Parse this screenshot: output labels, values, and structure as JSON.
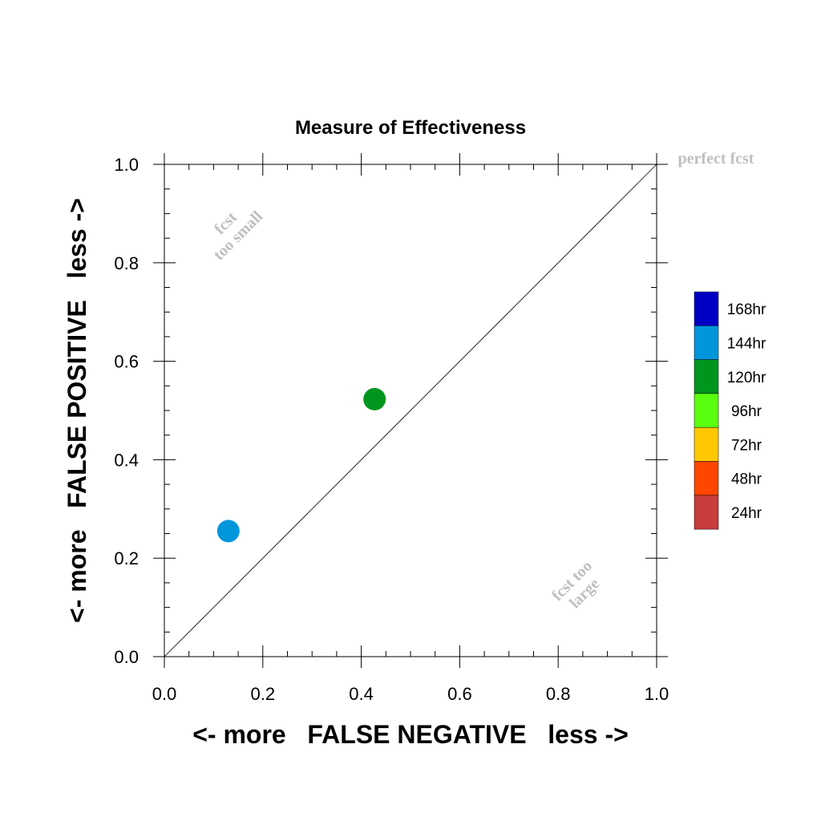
{
  "chart_data": {
    "type": "scatter",
    "title": "Measure of Effectiveness",
    "xlabel": "<- more   FALSE NEGATIVE   less ->",
    "ylabel": "<- more   FALSE POSITIVE   less ->",
    "xlim": [
      0.0,
      1.0
    ],
    "ylim": [
      0.0,
      1.0
    ],
    "xticks": [
      "0.0",
      "0.2",
      "0.4",
      "0.6",
      "0.8",
      "1.0"
    ],
    "yticks": [
      "0.0",
      "0.2",
      "0.4",
      "0.6",
      "0.8",
      "1.0"
    ],
    "grid": false,
    "reference_line": {
      "from": [
        0,
        0
      ],
      "to": [
        1,
        1
      ]
    },
    "annotations": {
      "perfect": "perfect fcst",
      "too_small_1": "fcst",
      "too_small_2": "too small",
      "too_large_1": "fcst too",
      "too_large_2": "large"
    },
    "legend": {
      "position": "right",
      "entries": [
        {
          "label": "168hr",
          "color": "#0000c4"
        },
        {
          "label": "144hr",
          "color": "#0096dc"
        },
        {
          "label": "120hr",
          "color": "#00961e"
        },
        {
          "label": "96hr",
          "color": "#5aff0f"
        },
        {
          "label": "72hr",
          "color": "#ffc800"
        },
        {
          "label": "48hr",
          "color": "#ff4600"
        },
        {
          "label": "24hr",
          "color": "#c83c3c"
        }
      ]
    },
    "points": [
      {
        "series": "144hr",
        "x": 0.13,
        "y": 0.255,
        "color": "#0096dc"
      },
      {
        "series": "120hr",
        "x": 0.427,
        "y": 0.523,
        "color": "#00961e"
      }
    ]
  }
}
